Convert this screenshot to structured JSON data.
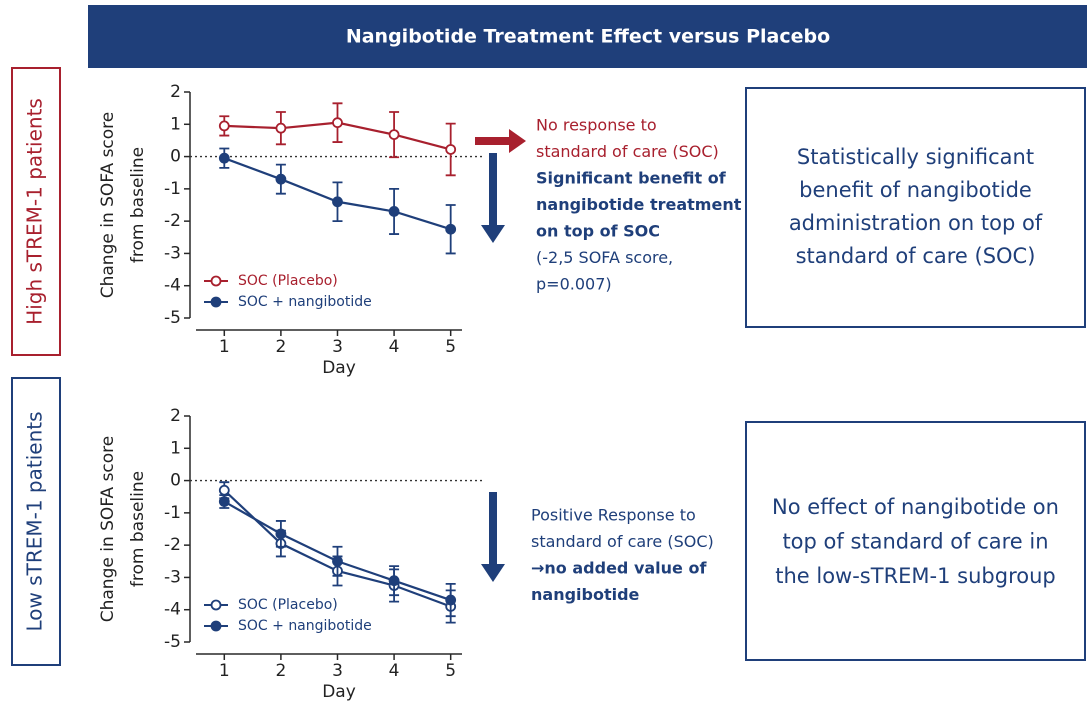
{
  "title": "Nangibotide Treatment Effect versus Placebo",
  "chart_data": [
    {
      "type": "line",
      "group_label": "High sTREM-1 patients",
      "ylabel": [
        "Change in SOFA score",
        "from baseline"
      ],
      "xlabel": "Day",
      "x": [
        1,
        2,
        3,
        4,
        5
      ],
      "xlim": [
        0.5,
        5.2
      ],
      "xticks": [
        1,
        2,
        3,
        4,
        5
      ],
      "ylim": [
        -5,
        2
      ],
      "yticks": [
        -5,
        -4,
        -3,
        -2,
        -1,
        0,
        1,
        2
      ],
      "reference_line": 0,
      "series": [
        {
          "name": "SOC (Placebo)",
          "color": "#a8202e",
          "marker": "open",
          "values": [
            0.95,
            0.88,
            1.05,
            0.68,
            0.22
          ],
          "errors": [
            0.3,
            0.5,
            0.6,
            0.7,
            0.8
          ]
        },
        {
          "name": "SOC + nangibotide",
          "color": "#1f3f7a",
          "marker": "filled",
          "values": [
            -0.05,
            -0.7,
            -1.4,
            -1.7,
            -2.25
          ],
          "errors": [
            0.3,
            0.45,
            0.6,
            0.7,
            0.75
          ]
        }
      ],
      "notes": [
        {
          "text": "No response to",
          "color": "#a8202e",
          "bold": false
        },
        {
          "text": "standard of care (SOC)",
          "color": "#a8202e",
          "bold": false
        },
        {
          "text": "Significant benefit of",
          "color": "#1f3f7a",
          "bold": true
        },
        {
          "text": "nangibotide treatment",
          "color": "#1f3f7a",
          "bold": true
        },
        {
          "text": "on top of SOC",
          "color": "#1f3f7a",
          "bold": true
        },
        {
          "text": "(-2,5 SOFA score,",
          "color": "#1f3f7a",
          "bold": false
        },
        {
          "text": "p=0.007)",
          "color": "#1f3f7a",
          "bold": false
        }
      ],
      "summary": [
        "Statistically significant",
        "benefit of nangibotide",
        "administration on top of",
        "standard of care (SOC)"
      ]
    },
    {
      "type": "line",
      "group_label": "Low sTREM-1 patients",
      "ylabel": [
        "Change in SOFA score",
        "from baseline"
      ],
      "xlabel": "Day",
      "x": [
        1,
        2,
        3,
        4,
        5
      ],
      "xlim": [
        0.5,
        5.2
      ],
      "xticks": [
        1,
        2,
        3,
        4,
        5
      ],
      "ylim": [
        -5,
        2
      ],
      "yticks": [
        -5,
        -4,
        -3,
        -2,
        -1,
        0,
        1,
        2
      ],
      "reference_line": 0,
      "series": [
        {
          "name": "SOC (Placebo)",
          "color": "#1f3f7a",
          "marker": "open",
          "values": [
            -0.3,
            -1.95,
            -2.8,
            -3.25,
            -3.9
          ],
          "errors": [
            0.25,
            0.4,
            0.45,
            0.5,
            0.5
          ]
        },
        {
          "name": "SOC + nangibotide",
          "color": "#1f3f7a",
          "marker": "filled",
          "values": [
            -0.65,
            -1.65,
            -2.5,
            -3.1,
            -3.7
          ],
          "errors": [
            0.2,
            0.4,
            0.45,
            0.45,
            0.5
          ]
        }
      ],
      "notes": [
        {
          "text": "Positive Response to",
          "color": "#1f3f7a",
          "bold": false
        },
        {
          "text": "standard of care (SOC)",
          "color": "#1f3f7a",
          "bold": false
        },
        {
          "text": "→no added value of",
          "color": "#1f3f7a",
          "bold": true
        },
        {
          "text": "nangibotide",
          "color": "#1f3f7a",
          "bold": true
        }
      ],
      "summary": [
        "No effect of nangibotide on",
        "top of standard of care in",
        "the low-sTREM-1 subgroup"
      ]
    }
  ]
}
